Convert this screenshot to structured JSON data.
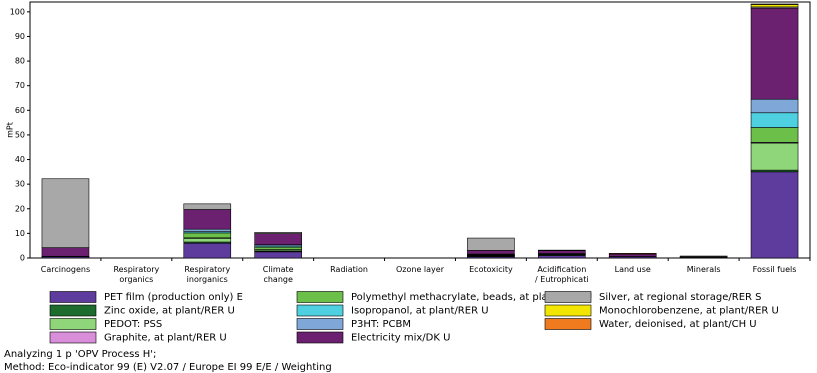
{
  "chart_data": {
    "type": "stacked_bar",
    "y_label": "mPt",
    "categories": [
      "Carcinogens",
      "Respiratory\norganics",
      "Respiratory\ninorganics",
      "Climate\nchange",
      "Radiation",
      "Ozone layer",
      "Ecotoxicity",
      "Acidification\n/ Eutrophicati",
      "Land use",
      "Minerals",
      "Fossil fuels"
    ],
    "ylim": [
      0,
      104
    ],
    "yticks": [
      0,
      10,
      20,
      30,
      40,
      50,
      60,
      70,
      80,
      90,
      100
    ],
    "series": [
      {
        "name": "PET film (production only) E",
        "color": "#5e3c9e",
        "values": [
          0.5,
          0,
          6,
          2.5,
          0,
          0,
          0.5,
          1,
          0.5,
          0.1,
          35
        ]
      },
      {
        "name": "Zinc oxide, at plant/RER U",
        "color": "#1e6b2e",
        "values": [
          0.2,
          0,
          0.5,
          0.3,
          0,
          0,
          0.3,
          0.3,
          0,
          0,
          0.7
        ]
      },
      {
        "name": "PEDOT: PSS",
        "color": "#8fd67a",
        "values": [
          0,
          0,
          1.5,
          0.5,
          0,
          0,
          0.2,
          0.1,
          0,
          0,
          11
        ]
      },
      {
        "name": "Graphite, at plant/RER U",
        "color": "#d98ed9",
        "values": [
          0,
          0,
          0.2,
          0.1,
          0,
          0,
          0.1,
          0,
          0.1,
          0.3,
          0.3
        ]
      },
      {
        "name": "Polymethyl methacrylate, beads, at plant/RER U",
        "color": "#6cc04a",
        "values": [
          0,
          0,
          2,
          1,
          0,
          0,
          0.2,
          0.2,
          0,
          0,
          6
        ]
      },
      {
        "name": "Isopropanol, at plant/RER U",
        "color": "#4fd0e0",
        "values": [
          0,
          0,
          0.5,
          0.5,
          0,
          0,
          0.1,
          0.1,
          0,
          0,
          6
        ]
      },
      {
        "name": "P3HT: PCBM",
        "color": "#7fa8d8",
        "values": [
          0,
          0,
          1,
          0.5,
          0,
          0,
          0.2,
          0.1,
          0,
          0,
          5.5
        ]
      },
      {
        "name": "Electricity mix/DK U",
        "color": "#6b2170",
        "values": [
          3.5,
          0,
          8,
          4.5,
          0,
          0,
          1.5,
          1.2,
          1,
          0.1,
          37
        ]
      },
      {
        "name": "Silver, at regional storage/RER S",
        "color": "#a8a8a8",
        "values": [
          28,
          0,
          2.3,
          0.5,
          0,
          0,
          5,
          0.2,
          0,
          0.3,
          0.5
        ]
      },
      {
        "name": "Monochlorobenzene, at plant/RER U",
        "color": "#f2e600",
        "values": [
          0,
          0,
          0,
          0,
          0,
          0,
          0,
          0,
          0,
          0,
          1
        ]
      },
      {
        "name": "Water, deionised, at plant/CH U",
        "color": "#f07a1e",
        "values": [
          0,
          0,
          0,
          0,
          0,
          0,
          0,
          0,
          0.3,
          0,
          0.2
        ]
      }
    ],
    "footer": [
      "Analyzing 1 p 'OPV Process H';",
      "Method: Eco-indicator 99 (E) V2.07 / Europe EI 99 E/E / Weighting"
    ]
  }
}
